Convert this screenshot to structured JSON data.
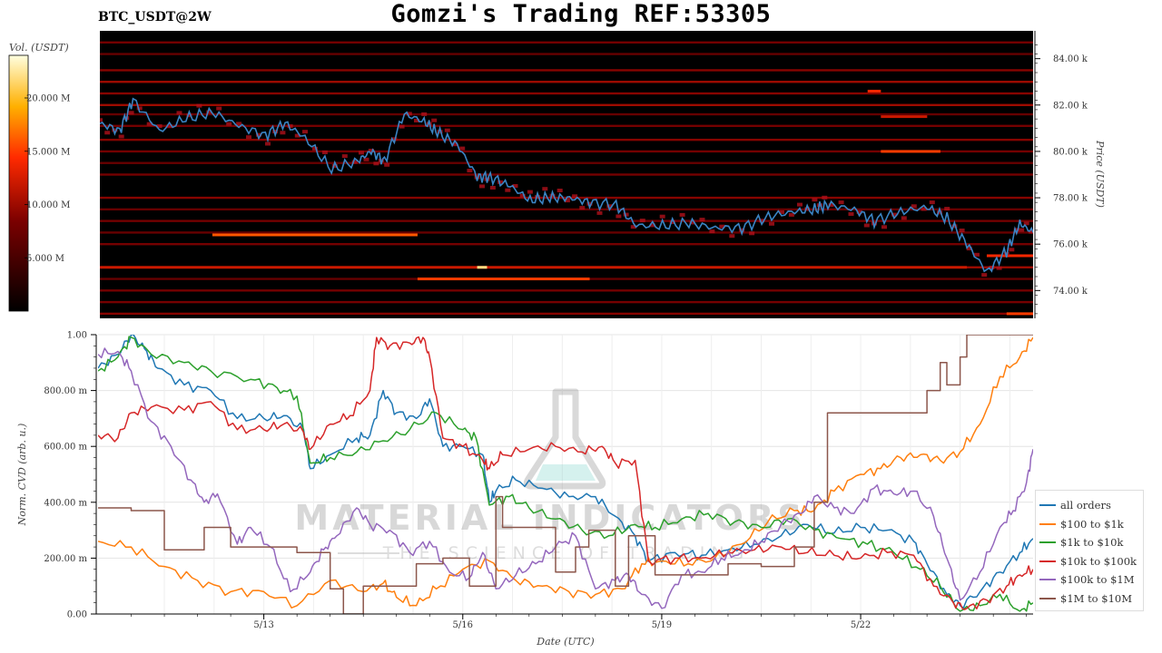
{
  "title": "Gomzi's Trading REF:53305",
  "symbol": "BTC_USDT@2W",
  "watermark": {
    "brand": "MATERIAL INDICATORS",
    "tagline": "THE SCIENCE OF TRADING",
    "icon": "flask-icon"
  },
  "chart_data": [
    {
      "type": "heatmap",
      "colorbar": {
        "label": "Vol. (USDT)",
        "ticks": [
          "20.000 M",
          "15.000 M",
          "10.000 M",
          "5.000 M"
        ],
        "tick_values": [
          20,
          15,
          10,
          5
        ],
        "range": [
          0,
          24
        ],
        "colormap": "hot"
      },
      "yaxis": {
        "label": "Price (USDT)",
        "ticks": [
          "84.00 k",
          "82.00 k",
          "80.00 k",
          "78.00 k",
          "76.00 k",
          "74.00 k"
        ],
        "tick_values": [
          84,
          82,
          80,
          78,
          76,
          74
        ],
        "range": [
          72.8,
          85.2
        ]
      },
      "xaxis": {
        "range": [
          10.5,
          24.6
        ]
      },
      "orderbook_levels": [
        {
          "price": 84.7,
          "vol": 8
        },
        {
          "price": 84.2,
          "vol": 7
        },
        {
          "price": 83.5,
          "vol": 9
        },
        {
          "price": 83.0,
          "vol": 10
        },
        {
          "price": 82.5,
          "vol": 9
        },
        {
          "price": 82.0,
          "vol": 10
        },
        {
          "price": 81.6,
          "vol": 7
        },
        {
          "price": 81.1,
          "vol": 8
        },
        {
          "price": 80.5,
          "vol": 9
        },
        {
          "price": 80.0,
          "vol": 8
        },
        {
          "price": 79.5,
          "vol": 7
        },
        {
          "price": 79.0,
          "vol": 8
        },
        {
          "price": 78.0,
          "vol": 9
        },
        {
          "price": 77.5,
          "vol": 7
        },
        {
          "price": 77.0,
          "vol": 8
        },
        {
          "price": 76.5,
          "vol": 7
        },
        {
          "price": 76.0,
          "vol": 8
        },
        {
          "price": 75.0,
          "vol": 10
        },
        {
          "price": 74.5,
          "vol": 7
        },
        {
          "price": 74.0,
          "vol": 8
        },
        {
          "price": 73.5,
          "vol": 8
        },
        {
          "price": 73.0,
          "vol": 9
        }
      ],
      "walls": [
        {
          "price": 82.6,
          "x0": 22.1,
          "x1": 22.3,
          "vol": 14
        },
        {
          "price": 81.5,
          "x0": 22.3,
          "x1": 23.0,
          "vol": 12
        },
        {
          "price": 80.0,
          "x0": 22.3,
          "x1": 23.2,
          "vol": 15
        },
        {
          "price": 76.4,
          "x0": 12.2,
          "x1": 15.3,
          "vol": 16
        },
        {
          "price": 75.5,
          "x0": 23.9,
          "x1": 24.6,
          "vol": 14
        },
        {
          "price": 75.0,
          "x0": 10.5,
          "x1": 23.6,
          "vol": 12
        },
        {
          "price": 75.0,
          "x0": 16.2,
          "x1": 16.35,
          "vol": 22
        },
        {
          "price": 74.5,
          "x0": 15.3,
          "x1": 17.9,
          "vol": 15
        },
        {
          "price": 73.0,
          "x0": 24.2,
          "x1": 24.6,
          "vol": 15
        }
      ],
      "price": {
        "x": [
          10.5,
          10.8,
          11.0,
          11.4,
          11.8,
          12.2,
          12.6,
          13.0,
          13.3,
          13.6,
          14.0,
          14.4,
          14.6,
          14.8,
          15.1,
          15.4,
          15.6,
          15.9,
          16.2,
          16.4,
          16.7,
          17.0,
          17.3,
          17.6,
          17.9,
          18.3,
          18.6,
          19.0,
          19.4,
          19.8,
          20.2,
          20.6,
          21.0,
          21.3,
          21.5,
          21.9,
          22.2,
          22.6,
          23.0,
          23.3,
          23.6,
          23.9,
          24.2,
          24.4,
          24.6
        ],
        "y": [
          81.2,
          80.9,
          82.2,
          80.9,
          81.4,
          81.7,
          81.1,
          80.7,
          81.2,
          80.6,
          79.2,
          79.6,
          80.0,
          79.6,
          81.6,
          81.3,
          80.8,
          80.3,
          78.9,
          78.9,
          78.5,
          77.9,
          78.0,
          78.0,
          77.8,
          77.7,
          76.8,
          76.8,
          76.9,
          76.7,
          76.7,
          77.2,
          77.4,
          77.5,
          77.7,
          77.5,
          77.0,
          77.4,
          77.6,
          77.1,
          76.0,
          74.8,
          75.7,
          76.9,
          76.5
        ],
        "color": "#3a84c4"
      }
    },
    {
      "type": "line",
      "ylabel": "Norm. CVD (arb. u.)",
      "xlabel": "Date (UTC)",
      "yticks": [
        "1.00",
        "800.00 m",
        "600.00 m",
        "400.00 m",
        "200.00 m",
        "0.00"
      ],
      "ytick_values": [
        1.0,
        0.8,
        0.6,
        0.4,
        0.2,
        0.0
      ],
      "ylim": [
        0,
        1
      ],
      "xticks": [
        "5/13",
        "5/16",
        "5/19",
        "5/22"
      ],
      "xtick_values": [
        13,
        16,
        19,
        22
      ],
      "xlim": [
        10.5,
        24.6
      ],
      "grid": true,
      "legend_position": "lower-right",
      "series": [
        {
          "name": "all orders",
          "color": "#1f77b4",
          "step": false,
          "x": [
            10.5,
            10.8,
            11.0,
            11.2,
            11.4,
            11.8,
            12.2,
            12.6,
            13.0,
            13.3,
            13.6,
            13.7,
            14.0,
            14.4,
            14.6,
            14.8,
            15.0,
            15.3,
            15.5,
            15.7,
            16.0,
            16.3,
            16.4,
            16.5,
            16.8,
            17.2,
            17.6,
            18.0,
            18.3,
            18.6,
            18.8,
            19.2,
            19.6,
            20.0,
            20.4,
            20.8,
            21.2,
            21.6,
            22.0,
            22.4,
            22.8,
            23.0,
            23.3,
            23.5,
            23.8,
            24.1,
            24.4,
            24.6
          ],
          "y": [
            0.88,
            0.93,
            1.0,
            0.95,
            0.88,
            0.82,
            0.8,
            0.7,
            0.7,
            0.71,
            0.66,
            0.52,
            0.57,
            0.63,
            0.64,
            0.8,
            0.72,
            0.7,
            0.77,
            0.6,
            0.6,
            0.57,
            0.4,
            0.44,
            0.48,
            0.45,
            0.42,
            0.42,
            0.35,
            0.28,
            0.19,
            0.22,
            0.21,
            0.23,
            0.25,
            0.28,
            0.32,
            0.29,
            0.31,
            0.3,
            0.26,
            0.18,
            0.07,
            0.03,
            0.08,
            0.15,
            0.22,
            0.27
          ]
        },
        {
          "name": "$100 to $1k",
          "color": "#ff7f0e",
          "step": false,
          "x": [
            10.5,
            11.0,
            11.5,
            12.0,
            12.5,
            13.0,
            13.5,
            14.0,
            14.5,
            14.8,
            15.0,
            15.3,
            15.6,
            16.0,
            16.4,
            16.8,
            17.2,
            17.6,
            18.0,
            18.4,
            18.7,
            19.0,
            19.4,
            19.8,
            20.2,
            20.6,
            21.0,
            21.3,
            21.6,
            22.0,
            22.3,
            22.6,
            22.9,
            23.2,
            23.5,
            23.8,
            24.1,
            24.4,
            24.6
          ],
          "y": [
            0.26,
            0.24,
            0.17,
            0.12,
            0.08,
            0.08,
            0.03,
            0.12,
            0.08,
            0.11,
            0.06,
            0.03,
            0.09,
            0.16,
            0.19,
            0.12,
            0.1,
            0.08,
            0.07,
            0.09,
            0.18,
            0.19,
            0.18,
            0.2,
            0.25,
            0.33,
            0.37,
            0.37,
            0.44,
            0.5,
            0.52,
            0.56,
            0.57,
            0.55,
            0.58,
            0.68,
            0.85,
            0.92,
            0.99
          ]
        },
        {
          "name": "$1k to $10k",
          "color": "#2ca02c",
          "step": false,
          "x": [
            10.5,
            10.8,
            11.0,
            11.3,
            11.8,
            12.2,
            12.8,
            13.2,
            13.5,
            13.7,
            14.0,
            14.4,
            14.8,
            15.2,
            15.6,
            16.0,
            16.2,
            16.4,
            16.7,
            17.0,
            17.4,
            17.8,
            18.2,
            18.6,
            18.9,
            19.3,
            19.7,
            20.1,
            20.5,
            20.9,
            21.3,
            21.7,
            22.1,
            22.5,
            22.9,
            23.2,
            23.5,
            23.8,
            24.1,
            24.4,
            24.6
          ],
          "y": [
            0.87,
            0.92,
            0.99,
            0.93,
            0.9,
            0.87,
            0.84,
            0.81,
            0.78,
            0.54,
            0.56,
            0.58,
            0.62,
            0.66,
            0.72,
            0.66,
            0.63,
            0.39,
            0.42,
            0.38,
            0.34,
            0.3,
            0.28,
            0.32,
            0.31,
            0.34,
            0.36,
            0.33,
            0.31,
            0.34,
            0.3,
            0.27,
            0.25,
            0.22,
            0.16,
            0.1,
            0.01,
            0.03,
            0.07,
            0.01,
            0.04
          ]
        },
        {
          "name": "$10k to $100k",
          "color": "#d62728",
          "step": false,
          "x": [
            10.5,
            10.8,
            11.0,
            11.3,
            11.8,
            12.2,
            12.6,
            13.0,
            13.3,
            13.6,
            13.7,
            14.0,
            14.3,
            14.6,
            14.7,
            14.9,
            15.2,
            15.4,
            15.5,
            15.7,
            16.0,
            16.3,
            16.4,
            16.6,
            17.0,
            17.4,
            17.8,
            18.1,
            18.3,
            18.6,
            18.8,
            19.2,
            19.6,
            20.0,
            20.4,
            20.8,
            21.2,
            21.6,
            22.0,
            22.4,
            22.8,
            23.1,
            23.4,
            23.6,
            23.9,
            24.2,
            24.4,
            24.6
          ],
          "y": [
            0.64,
            0.63,
            0.72,
            0.74,
            0.73,
            0.76,
            0.66,
            0.66,
            0.68,
            0.65,
            0.59,
            0.68,
            0.71,
            0.8,
            0.99,
            0.96,
            0.97,
            0.99,
            0.92,
            0.63,
            0.6,
            0.55,
            0.52,
            0.57,
            0.59,
            0.6,
            0.58,
            0.6,
            0.54,
            0.55,
            0.19,
            0.2,
            0.2,
            0.22,
            0.23,
            0.24,
            0.22,
            0.21,
            0.2,
            0.22,
            0.21,
            0.1,
            0.04,
            0.02,
            0.05,
            0.1,
            0.14,
            0.16
          ]
        },
        {
          "name": "$100k to $1M",
          "color": "#9467bd",
          "step": false,
          "x": [
            10.5,
            10.8,
            11.0,
            11.3,
            11.6,
            11.9,
            12.1,
            12.3,
            12.6,
            12.8,
            13.1,
            13.4,
            13.7,
            13.9,
            14.1,
            14.4,
            14.6,
            14.9,
            15.2,
            15.5,
            15.8,
            16.1,
            16.3,
            16.5,
            16.8,
            17.1,
            17.4,
            17.7,
            18.0,
            18.3,
            18.5,
            18.7,
            19.0,
            19.3,
            19.6,
            19.9,
            20.2,
            20.5,
            20.8,
            21.1,
            21.3,
            21.6,
            21.9,
            22.2,
            22.5,
            22.8,
            23.1,
            23.3,
            23.5,
            23.8,
            24.1,
            24.3,
            24.5,
            24.6
          ],
          "y": [
            0.93,
            0.94,
            0.87,
            0.69,
            0.6,
            0.48,
            0.4,
            0.43,
            0.25,
            0.31,
            0.24,
            0.08,
            0.15,
            0.23,
            0.28,
            0.38,
            0.32,
            0.3,
            0.22,
            0.26,
            0.15,
            0.13,
            0.22,
            0.09,
            0.14,
            0.18,
            0.24,
            0.28,
            0.09,
            0.12,
            0.14,
            0.07,
            0.02,
            0.14,
            0.15,
            0.2,
            0.22,
            0.26,
            0.32,
            0.36,
            0.42,
            0.38,
            0.36,
            0.45,
            0.43,
            0.44,
            0.35,
            0.2,
            0.05,
            0.15,
            0.31,
            0.37,
            0.47,
            0.59
          ]
        },
        {
          "name": "$1M to $10M",
          "color": "#8c564b",
          "step": true,
          "x": [
            10.5,
            11.0,
            11.5,
            12.0,
            12.1,
            12.5,
            13.5,
            14.0,
            14.2,
            14.5,
            15.3,
            15.7,
            16.1,
            16.5,
            16.6,
            17.4,
            17.7,
            17.9,
            18.3,
            18.5,
            18.9,
            19.5,
            20.0,
            20.5,
            21.0,
            21.3,
            21.5,
            22.0,
            22.3,
            22.8,
            23.0,
            23.2,
            23.3,
            23.5,
            23.6,
            24.6
          ],
          "y": [
            0.38,
            0.37,
            0.23,
            0.23,
            0.31,
            0.24,
            0.22,
            0.09,
            0.0,
            0.1,
            0.18,
            0.2,
            0.1,
            0.42,
            0.31,
            0.15,
            0.24,
            0.3,
            0.1,
            0.28,
            0.14,
            0.14,
            0.18,
            0.17,
            0.24,
            0.4,
            0.72,
            0.72,
            0.72,
            0.72,
            0.8,
            0.9,
            0.82,
            0.92,
            1.0,
            1.0
          ]
        }
      ]
    }
  ]
}
